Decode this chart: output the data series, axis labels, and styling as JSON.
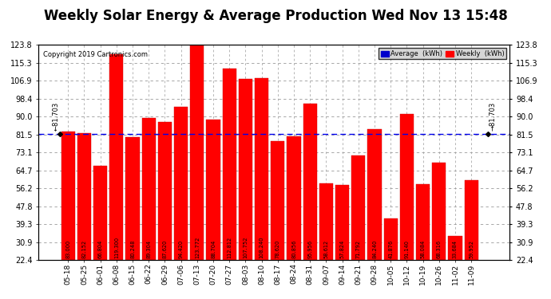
{
  "title": "Weekly Solar Energy & Average Production Wed Nov 13 15:48",
  "copyright": "Copyright 2019 Cartronics.com",
  "categories": [
    "05-18",
    "05-25",
    "06-01",
    "06-08",
    "06-15",
    "06-22",
    "06-29",
    "07-06",
    "07-13",
    "07-20",
    "07-27",
    "08-03",
    "08-10",
    "08-17",
    "08-24",
    "08-31",
    "09-07",
    "09-14",
    "09-21",
    "09-28",
    "10-05",
    "10-12",
    "10-19",
    "10-26",
    "11-02",
    "11-09"
  ],
  "values": [
    83.0,
    82.152,
    66.804,
    119.3,
    80.248,
    89.304,
    87.62,
    94.42,
    123.772,
    88.704,
    112.812,
    107.752,
    108.24,
    78.62,
    80.856,
    95.956,
    58.612,
    57.824,
    71.792,
    84.24,
    41.876,
    91.14,
    58.084,
    68.316,
    33.684,
    59.952
  ],
  "average": 81.703,
  "bar_color": "#FF0000",
  "avg_line_color": "#0000EE",
  "background_color": "#FFFFFF",
  "grid_color": "#999999",
  "ylim_min": 22.4,
  "ylim_max": 123.8,
  "yticks": [
    22.4,
    30.9,
    39.3,
    47.8,
    56.2,
    64.7,
    73.1,
    81.5,
    90.0,
    98.4,
    106.9,
    115.3,
    123.8
  ],
  "title_fontsize": 12,
  "tick_fontsize": 7,
  "value_fontsize": 4.8,
  "avg_label": "81.703",
  "legend_avg_color": "#0000CC",
  "legend_weekly_color": "#FF0000",
  "copyright_fontsize": 6
}
